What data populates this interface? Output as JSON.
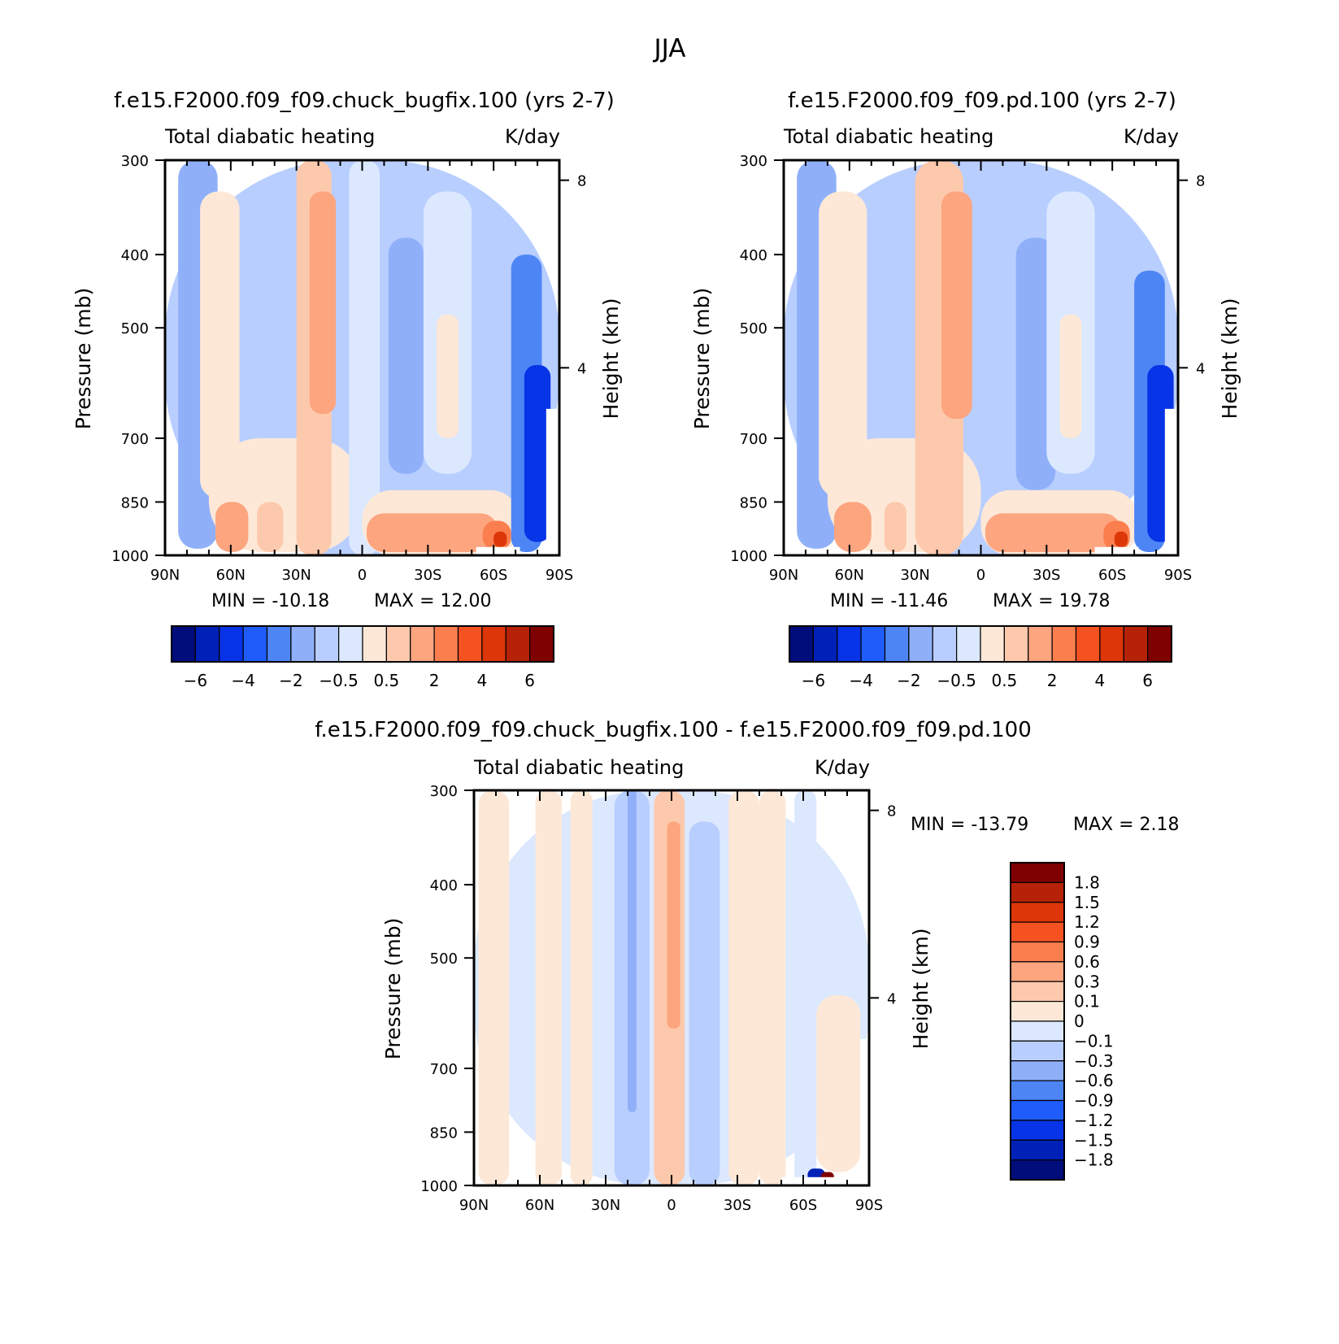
{
  "figure_title": "JJA",
  "chart_data": [
    {
      "type": "heatmap",
      "id": "panel-bugfix",
      "title": "f.e15.F2000.f09_f09.chuck_bugfix.100 (yrs 2-7)",
      "left_label": "Total diabatic heating",
      "right_label": "K/day",
      "xlabel": "",
      "ylabel": "Pressure (mb)",
      "y2label": "Height (km)",
      "x_ticks": [
        "90N",
        "60N",
        "30N",
        "0",
        "30S",
        "60S",
        "90S"
      ],
      "x_range": [
        "90N",
        "90S"
      ],
      "y_ticks": [
        "300",
        "400",
        "500",
        "700",
        "850",
        "1000"
      ],
      "y_range": [
        1000,
        300
      ],
      "y_log": true,
      "y2_ticks": [
        "8",
        "4"
      ],
      "min_label": "MIN = -10.18",
      "max_label": "MAX = 12.00",
      "min": -10.18,
      "max": 12.0,
      "colorbar_orientation": "horizontal",
      "colorbar_labels": [
        "-6",
        "-4",
        "-2",
        "-0.5",
        "0.5",
        "2",
        "4",
        "6"
      ],
      "regions": [
        {
          "lat": [
            90,
            -90
          ],
          "p": [
            300,
            1000
          ],
          "value": -1.0
        },
        {
          "lat": [
            84,
            66
          ],
          "p": [
            300,
            980
          ],
          "value": -1.5
        },
        {
          "lat": [
            74,
            56
          ],
          "p": [
            330,
            840
          ],
          "value": 0.3
        },
        {
          "lat": [
            70,
            0
          ],
          "p": [
            700,
            990
          ],
          "value": 0.3
        },
        {
          "lat": [
            67,
            52
          ],
          "p": [
            850,
            990
          ],
          "value": 1.2
        },
        {
          "lat": [
            48,
            36
          ],
          "p": [
            850,
            990
          ],
          "value": 0.8
        },
        {
          "lat": [
            30,
            14
          ],
          "p": [
            300,
            1000
          ],
          "value": 0.6
        },
        {
          "lat": [
            24,
            12
          ],
          "p": [
            330,
            650
          ],
          "value": 1.8
        },
        {
          "lat": [
            6,
            -8
          ],
          "p": [
            300,
            1000
          ],
          "value": -0.3
        },
        {
          "lat": [
            -12,
            -28
          ],
          "p": [
            380,
            780
          ],
          "value": -1.8
        },
        {
          "lat": [
            -28,
            -50
          ],
          "p": [
            330,
            780
          ],
          "value": -0.3
        },
        {
          "lat": [
            -34,
            -44
          ],
          "p": [
            480,
            700
          ],
          "value": 0.3
        },
        {
          "lat": [
            0,
            -72
          ],
          "p": [
            820,
            1000
          ],
          "value": 0.4
        },
        {
          "lat": [
            -2,
            -62
          ],
          "p": [
            880,
            990
          ],
          "value": 1.2
        },
        {
          "lat": [
            -55,
            -68
          ],
          "p": [
            900,
            985
          ],
          "value": 2.4
        },
        {
          "lat": [
            -60,
            -66
          ],
          "p": [
            930,
            975
          ],
          "value": 4.5
        },
        {
          "lat": [
            -68,
            -82
          ],
          "p": [
            400,
            990
          ],
          "value": -2.5
        },
        {
          "lat": [
            -74,
            -86
          ],
          "p": [
            560,
            960
          ],
          "value": -4.5
        }
      ],
      "masked": [
        {
          "lat": [
            -52,
            -72
          ],
          "p": [
            975,
            1000
          ]
        },
        {
          "lat": [
            -84,
            -90
          ],
          "p": [
            640,
            1000
          ]
        }
      ]
    },
    {
      "type": "heatmap",
      "id": "panel-pd",
      "title": "f.e15.F2000.f09_f09.pd.100 (yrs 2-7)",
      "left_label": "Total diabatic heating",
      "right_label": "K/day",
      "xlabel": "",
      "ylabel": "Pressure (mb)",
      "y2label": "Height (km)",
      "x_ticks": [
        "90N",
        "60N",
        "30N",
        "0",
        "30S",
        "60S",
        "90S"
      ],
      "x_range": [
        "90N",
        "90S"
      ],
      "y_ticks": [
        "300",
        "400",
        "500",
        "700",
        "850",
        "1000"
      ],
      "y_range": [
        1000,
        300
      ],
      "y_log": true,
      "y2_ticks": [
        "8",
        "4"
      ],
      "min_label": "MIN = -11.46",
      "max_label": "MAX = 19.78",
      "min": -11.46,
      "max": 19.78,
      "colorbar_orientation": "horizontal",
      "colorbar_labels": [
        "-6",
        "-4",
        "-2",
        "-0.5",
        "0.5",
        "2",
        "4",
        "6"
      ],
      "regions": [
        {
          "lat": [
            90,
            -90
          ],
          "p": [
            300,
            1000
          ],
          "value": -1.0
        },
        {
          "lat": [
            84,
            66
          ],
          "p": [
            300,
            980
          ],
          "value": -1.5
        },
        {
          "lat": [
            74,
            52
          ],
          "p": [
            330,
            840
          ],
          "value": 0.3
        },
        {
          "lat": [
            70,
            0
          ],
          "p": [
            700,
            990
          ],
          "value": 0.3
        },
        {
          "lat": [
            67,
            50
          ],
          "p": [
            850,
            990
          ],
          "value": 1.2
        },
        {
          "lat": [
            44,
            34
          ],
          "p": [
            850,
            990
          ],
          "value": 0.8
        },
        {
          "lat": [
            30,
            8
          ],
          "p": [
            300,
            1000
          ],
          "value": 0.6
        },
        {
          "lat": [
            18,
            4
          ],
          "p": [
            330,
            660
          ],
          "value": 1.8
        },
        {
          "lat": [
            -16,
            -34
          ],
          "p": [
            380,
            820
          ],
          "value": -1.8
        },
        {
          "lat": [
            -30,
            -52
          ],
          "p": [
            330,
            780
          ],
          "value": -0.3
        },
        {
          "lat": [
            -36,
            -46
          ],
          "p": [
            480,
            700
          ],
          "value": 0.3
        },
        {
          "lat": [
            0,
            -72
          ],
          "p": [
            820,
            1000
          ],
          "value": 0.4
        },
        {
          "lat": [
            -2,
            -64
          ],
          "p": [
            880,
            990
          ],
          "value": 1.2
        },
        {
          "lat": [
            -56,
            -68
          ],
          "p": [
            900,
            985
          ],
          "value": 2.4
        },
        {
          "lat": [
            -61,
            -67
          ],
          "p": [
            930,
            975
          ],
          "value": 4.5
        },
        {
          "lat": [
            -70,
            -84
          ],
          "p": [
            420,
            990
          ],
          "value": -2.5
        },
        {
          "lat": [
            -76,
            -88
          ],
          "p": [
            560,
            960
          ],
          "value": -4.5
        }
      ],
      "masked": [
        {
          "lat": [
            -52,
            -72
          ],
          "p": [
            975,
            1000
          ]
        },
        {
          "lat": [
            -84,
            -90
          ],
          "p": [
            640,
            1000
          ]
        }
      ]
    },
    {
      "type": "heatmap",
      "id": "panel-diff",
      "title": "f.e15.F2000.f09_f09.chuck_bugfix.100 - f.e15.F2000.f09_f09.pd.100",
      "left_label": "Total diabatic heating",
      "right_label": "K/day",
      "xlabel": "",
      "ylabel": "Pressure (mb)",
      "y2label": "Height (km)",
      "x_ticks": [
        "90N",
        "60N",
        "30N",
        "0",
        "30S",
        "60S",
        "90S"
      ],
      "x_range": [
        "90N",
        "90S"
      ],
      "y_ticks": [
        "300",
        "400",
        "500",
        "700",
        "850",
        "1000"
      ],
      "y_range": [
        1000,
        300
      ],
      "y_log": true,
      "y2_ticks": [
        "8",
        "4"
      ],
      "min_label": "MIN = -13.79",
      "max_label": "MAX = 2.18",
      "min": -13.79,
      "max": 2.18,
      "colorbar_orientation": "vertical",
      "colorbar_labels": [
        "1.8",
        "1.5",
        "1.2",
        "0.9",
        "0.6",
        "0.3",
        "0.1",
        "0",
        "-0.1",
        "-0.3",
        "-0.6",
        "-0.9",
        "-1.2",
        "-1.5",
        "-1.8"
      ],
      "regions": [
        {
          "lat": [
            90,
            -90
          ],
          "p": [
            300,
            1000
          ],
          "value": -0.05
        },
        {
          "lat": [
            88,
            74
          ],
          "p": [
            300,
            1000
          ],
          "value": 0.05
        },
        {
          "lat": [
            62,
            50
          ],
          "p": [
            300,
            1000
          ],
          "value": 0.05
        },
        {
          "lat": [
            46,
            36
          ],
          "p": [
            300,
            1000
          ],
          "value": 0.05
        },
        {
          "lat": [
            26,
            10
          ],
          "p": [
            300,
            1000
          ],
          "value": -0.2
        },
        {
          "lat": [
            20,
            16
          ],
          "p": [
            300,
            800
          ],
          "value": -0.4
        },
        {
          "lat": [
            8,
            -6
          ],
          "p": [
            300,
            1000
          ],
          "value": 0.2
        },
        {
          "lat": [
            2,
            -4
          ],
          "p": [
            330,
            620
          ],
          "value": 0.4
        },
        {
          "lat": [
            -8,
            -22
          ],
          "p": [
            330,
            1000
          ],
          "value": -0.2
        },
        {
          "lat": [
            -26,
            -40
          ],
          "p": [
            300,
            1000
          ],
          "value": 0.05
        },
        {
          "lat": [
            -40,
            -52
          ],
          "p": [
            300,
            1000
          ],
          "value": 0.05
        },
        {
          "lat": [
            -56,
            -66
          ],
          "p": [
            300,
            1000
          ],
          "value": -0.05
        },
        {
          "lat": [
            -66,
            -86
          ],
          "p": [
            560,
            960
          ],
          "value": 0.05
        },
        {
          "lat": [
            -62,
            -70
          ],
          "p": [
            950,
            990
          ],
          "value": -1.8
        },
        {
          "lat": [
            -68,
            -74
          ],
          "p": [
            960,
            990
          ],
          "value": 1.8
        }
      ],
      "masked": [
        {
          "lat": [
            -50,
            -78
          ],
          "p": [
            975,
            1000
          ]
        },
        {
          "lat": [
            -86,
            -90
          ],
          "p": [
            640,
            1000
          ]
        }
      ]
    }
  ],
  "colors": {
    "main_levels": [
      "#000d7a",
      "#0021b8",
      "#0634e6",
      "#1f5cfa",
      "#4d85f5",
      "#8fb0f9",
      "#b8ceff",
      "#dbe8fe",
      "#fde8d7",
      "#fdc9ac",
      "#fca57f",
      "#fb7e4f",
      "#f55222",
      "#dc3609",
      "#b62207",
      "#7f0000"
    ],
    "diff_levels": [
      "#000d7a",
      "#0021b8",
      "#0634e6",
      "#1f5cfa",
      "#4d85f5",
      "#8fb0f9",
      "#b8ceff",
      "#dbe8fe",
      "#fde8d7",
      "#fdc9ac",
      "#fca57f",
      "#fb7e4f",
      "#f55222",
      "#dc3609",
      "#b62207",
      "#7f0000"
    ]
  }
}
